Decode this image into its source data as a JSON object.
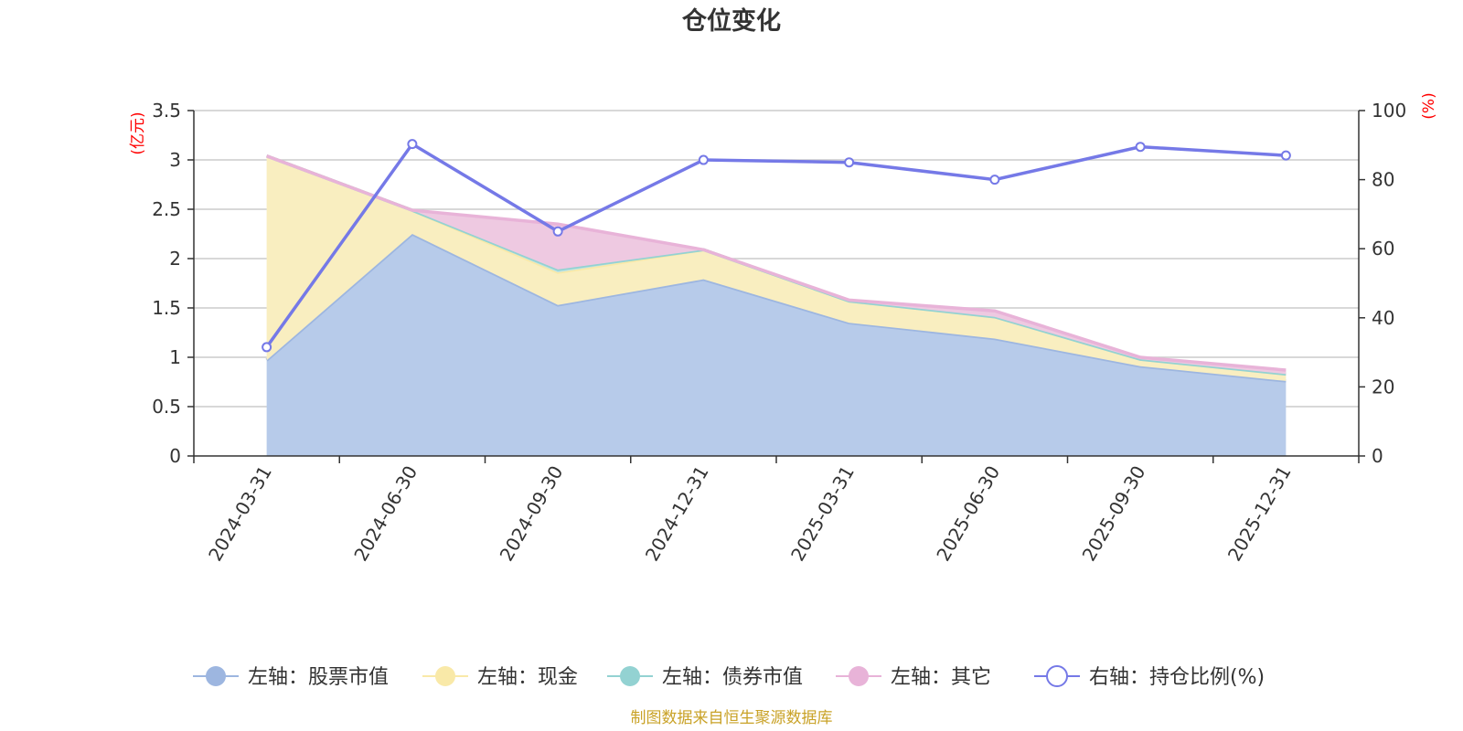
{
  "chart_data": {
    "type": "area",
    "title": "仓位变化",
    "categories": [
      "2024-03-31",
      "2024-06-30",
      "2024-09-30",
      "2024-12-31",
      "2025-03-31",
      "2025-06-30",
      "2025-09-30",
      "2025-12-31"
    ],
    "left_axis": {
      "unit": "(亿元)",
      "min": 0,
      "max": 3.5,
      "ticks": [
        "0",
        "0.5",
        "1",
        "1.5",
        "2",
        "2.5",
        "3",
        "3.5"
      ]
    },
    "right_axis": {
      "unit": "(%)",
      "min": 0,
      "max": 100,
      "ticks": [
        "0",
        "20",
        "40",
        "60",
        "80",
        "100"
      ]
    },
    "series": [
      {
        "name": "左轴：股票市值",
        "axis": "left",
        "kind": "area",
        "color": "#9db6e0",
        "fill": "#b7cbea",
        "values": [
          0.97,
          2.25,
          1.53,
          1.79,
          1.35,
          1.19,
          0.91,
          0.76
        ]
      },
      {
        "name": "左轴：现金",
        "axis": "left",
        "kind": "area",
        "color": "#f9e9a8",
        "fill": "#f9eec0",
        "values": [
          2.07,
          0.24,
          0.33,
          0.3,
          0.22,
          0.22,
          0.07,
          0.07
        ]
      },
      {
        "name": "左轴：债券市值",
        "axis": "left",
        "kind": "area",
        "color": "#93d2d2",
        "fill": "#bfe3e3",
        "values": [
          0.0,
          0.0,
          0.03,
          0.0,
          0.0,
          0.0,
          0.0,
          0.0
        ]
      },
      {
        "name": "左轴：其它",
        "axis": "left",
        "kind": "area",
        "color": "#e8b3d8",
        "fill": "#eec9e1",
        "values": [
          0.0,
          0.0,
          0.46,
          0.0,
          0.01,
          0.06,
          0.02,
          0.04
        ]
      },
      {
        "name": "右轴：持仓比例(%)",
        "axis": "right",
        "kind": "line",
        "color": "#7579e7",
        "values": [
          31.5,
          90.3,
          65.0,
          85.7,
          85.0,
          80.0,
          89.5,
          87.0
        ]
      }
    ],
    "legend_position": "bottom",
    "source": "制图数据来自恒生聚源数据库"
  }
}
